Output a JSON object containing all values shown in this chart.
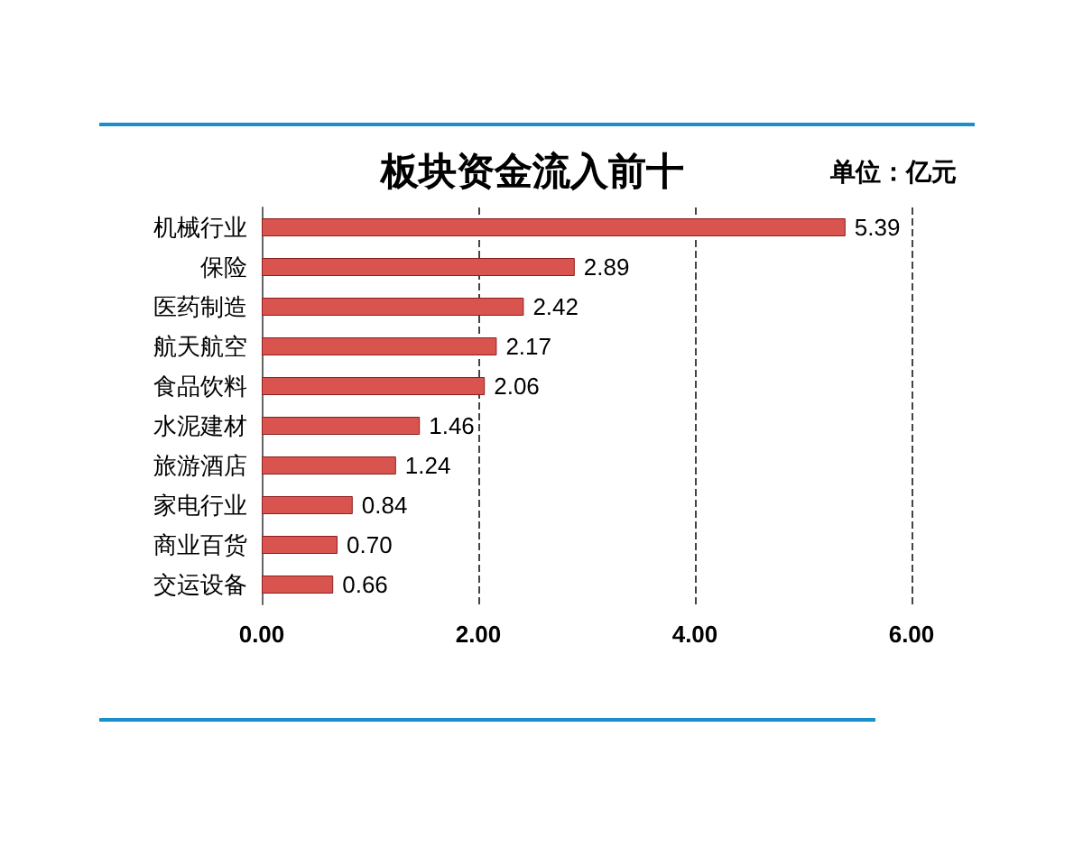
{
  "chart_data": {
    "type": "bar",
    "orientation": "horizontal",
    "title": "板块资金流入前十",
    "annotations": [
      "单位：亿元"
    ],
    "categories": [
      "机械行业",
      "保险",
      "医药制造",
      "航天航空",
      "食品饮料",
      "水泥建材",
      "旅游酒店",
      "家电行业",
      "商业百货",
      "交运设备"
    ],
    "values": [
      5.39,
      2.89,
      2.42,
      2.17,
      2.06,
      1.46,
      1.24,
      0.84,
      0.7,
      0.66
    ],
    "value_labels": [
      "5.39",
      "2.89",
      "2.42",
      "2.17",
      "2.06",
      "1.46",
      "1.24",
      "0.84",
      "0.70",
      "0.66"
    ],
    "color": "#d9534f",
    "xlim": [
      0,
      6
    ],
    "xticks": [
      {
        "value": 0,
        "label": "0.00"
      },
      {
        "value": 2,
        "label": "2.00"
      },
      {
        "value": 4,
        "label": "4.00"
      },
      {
        "value": 6,
        "label": "6.00"
      }
    ],
    "grid": "x"
  }
}
